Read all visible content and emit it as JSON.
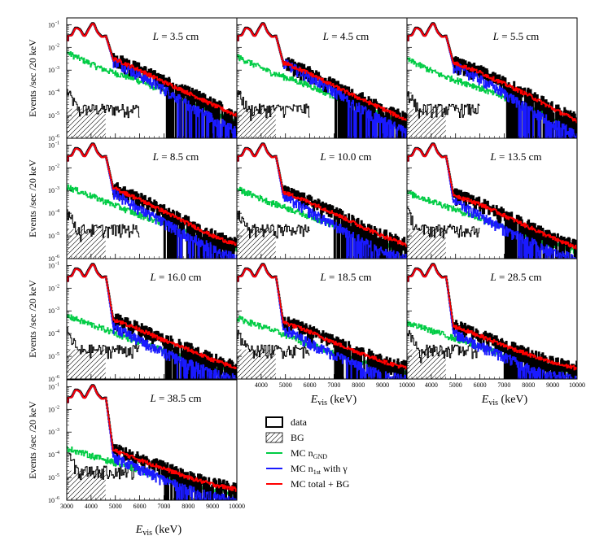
{
  "chart_data": {
    "type": "line",
    "x_range": [
      3000,
      10000
    ],
    "y_range": [
      1e-06,
      0.2
    ],
    "y_scale": "log",
    "ylabel": "Events /sec /20 keV",
    "xlabel_main": "E",
    "xlabel_sub": "vis",
    "xlabel_unit": " (keV)",
    "x_tick_labels": [
      "3000",
      "4000",
      "5000",
      "6000",
      "7000",
      "8000",
      "9000",
      "10000"
    ],
    "y_tick_labels": [
      "10",
      "10",
      "10",
      "10",
      "10",
      "10"
    ],
    "y_tick_exponents": [
      "-1",
      "-2",
      "-3",
      "-4",
      "-5",
      "-6"
    ],
    "series_colors": {
      "data": "#000000",
      "mc_gnd": "#00cc44",
      "mc_1st": "#1a1aff",
      "mc_total": "#ff0000"
    },
    "panels": [
      {
        "L": "3.5",
        "label_prefix": "L = ",
        "label_unit": " cm",
        "data_tail": [
          0.003,
          0.001,
          0.0003,
          0.0001,
          3e-05,
          1e-05
        ],
        "gnd": [
          0.006,
          0.0012,
          0.0004,
          0.0001,
          2e-05,
          5e-06
        ],
        "first": [
          0.0025,
          0.0006,
          0.00015,
          3e-05,
          8e-06,
          2e-06
        ]
      },
      {
        "L": "4.5",
        "label_prefix": "L = ",
        "label_unit": " cm",
        "data_tail": [
          0.002,
          0.0007,
          0.0002,
          6e-05,
          2e-05,
          6e-06
        ],
        "gnd": [
          0.004,
          0.0008,
          0.00025,
          6e-05,
          1.5e-05,
          4e-06
        ],
        "first": [
          0.002,
          0.0005,
          0.00012,
          2.5e-05,
          6e-06,
          2e-06
        ]
      },
      {
        "L": "5.5",
        "label_prefix": "L = ",
        "label_unit": " cm",
        "data_tail": [
          0.002,
          0.0008,
          0.00025,
          8e-05,
          2e-05,
          6e-06
        ],
        "gnd": [
          0.003,
          0.0006,
          0.0002,
          5e-05,
          1.2e-05,
          3e-06
        ],
        "first": [
          0.0015,
          0.0004,
          0.0001,
          2e-05,
          5e-06,
          1.5e-06
        ]
      },
      {
        "L": "8.5",
        "label_prefix": "L = ",
        "label_unit": " cm",
        "data_tail": [
          0.0012,
          0.0004,
          0.00012,
          3.5e-05,
          1e-05,
          4e-06
        ],
        "gnd": [
          0.0015,
          0.0004,
          0.0001,
          3e-05,
          8e-06,
          3e-06
        ],
        "first": [
          0.0008,
          0.00015,
          4e-05,
          1e-05,
          3e-06,
          1e-06
        ]
      },
      {
        "L": "10.0",
        "label_prefix": "L = ",
        "label_unit": " cm",
        "data_tail": [
          0.0008,
          0.0003,
          0.0001,
          3e-05,
          1e-05,
          4e-06
        ],
        "gnd": [
          0.0012,
          0.0003,
          9e-05,
          2.5e-05,
          7e-06,
          2e-06
        ],
        "first": [
          0.0005,
          0.00012,
          3e-05,
          8e-06,
          2e-06,
          1e-06
        ]
      },
      {
        "L": "13.5",
        "label_prefix": "L = ",
        "label_unit": " cm",
        "data_tail": [
          0.0006,
          0.00025,
          8e-05,
          2.5e-05,
          8e-06,
          3e-06
        ],
        "gnd": [
          0.0008,
          0.00025,
          7e-05,
          2e-05,
          6e-06,
          2e-06
        ],
        "first": [
          0.0003,
          8e-05,
          2e-05,
          6e-06,
          2e-06,
          1e-06
        ]
      },
      {
        "L": "16.0",
        "label_prefix": "L = ",
        "label_unit": " cm",
        "data_tail": [
          0.0004,
          0.00015,
          5e-05,
          2e-05,
          7e-06,
          3e-06
        ],
        "gnd": [
          0.0006,
          0.00018,
          5e-05,
          1.5e-05,
          5e-06,
          2e-06
        ],
        "first": [
          0.0002,
          5e-05,
          1.5e-05,
          5e-06,
          2e-06,
          1e-06
        ]
      },
      {
        "L": "18.5",
        "label_prefix": "L = ",
        "label_unit": " cm",
        "data_tail": [
          0.0003,
          0.00012,
          4e-05,
          1.5e-05,
          6e-06,
          3e-06
        ],
        "gnd": [
          0.0005,
          0.00015,
          4e-05,
          1.2e-05,
          4e-06,
          2e-06
        ],
        "first": [
          0.00015,
          4e-05,
          1.2e-05,
          4e-06,
          1.5e-06,
          1e-06
        ]
      },
      {
        "L": "28.5",
        "label_prefix": "L = ",
        "label_unit": " cm",
        "data_tail": [
          0.0002,
          8e-05,
          3e-05,
          1.2e-05,
          5e-06,
          3e-06
        ],
        "gnd": [
          0.0003,
          0.0001,
          3e-05,
          1e-05,
          4e-06,
          2e-06
        ],
        "first": [
          0.0001,
          3e-05,
          1e-05,
          3e-06,
          1.5e-06,
          1e-06
        ]
      },
      {
        "L": "38.5",
        "label_prefix": "L = ",
        "label_unit": " cm",
        "data_tail": [
          0.00015,
          6e-05,
          2.5e-05,
          1e-05,
          5e-06,
          3e-06
        ],
        "gnd": [
          0.0002,
          7e-05,
          2.5e-05,
          8e-06,
          3e-06,
          2e-06
        ],
        "first": [
          8e-05,
          2.5e-05,
          8e-06,
          3e-06,
          1.5e-06,
          1e-06
        ]
      }
    ],
    "legend": [
      {
        "key": "data",
        "text": "data",
        "sub": "",
        "after": "",
        "style": "box"
      },
      {
        "key": "bg",
        "text": "BG",
        "sub": "",
        "after": "",
        "style": "hatch"
      },
      {
        "key": "mc_gnd",
        "text": "MC n",
        "sub": "GND",
        "after": "",
        "style": "line"
      },
      {
        "key": "mc_1st",
        "text": "MC n",
        "sub": "1st",
        "after": " with γ",
        "style": "line"
      },
      {
        "key": "mc_total",
        "text": "MC total + BG",
        "sub": "",
        "after": "",
        "style": "line"
      }
    ]
  }
}
